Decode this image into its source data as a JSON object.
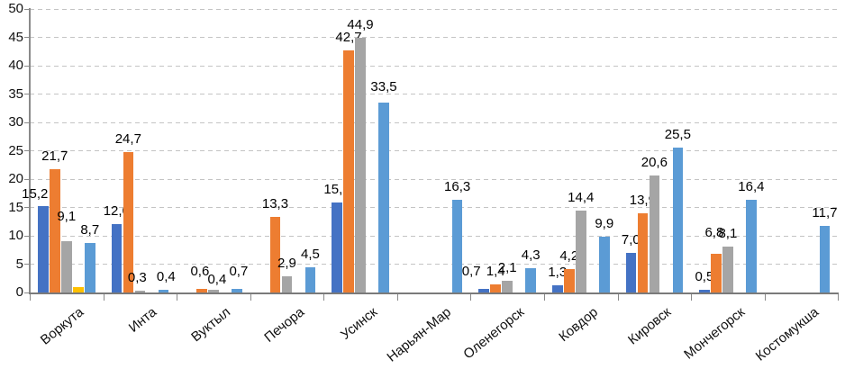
{
  "chart_data": {
    "type": "bar",
    "title": "",
    "xlabel": "",
    "ylabel": "",
    "grid": "dashed-horizontal",
    "legend_position": "none",
    "background": "#ffffff",
    "text_color": "#000000",
    "axis_color": "#8a8a8a",
    "gridline_color": "#c4c4c4",
    "y_axis": {
      "min": 0,
      "max": 50,
      "step": 5,
      "tick_labels": [
        "0",
        "5",
        "10",
        "15",
        "20",
        "25",
        "30",
        "35",
        "40",
        "45",
        "50"
      ]
    },
    "categories": [
      "Воркута",
      "Инта",
      "Вуктыл",
      "Печора",
      "Усинск",
      "Нарьян-Мар",
      "Оленегорск",
      "Ковдор",
      "Кировск",
      "Мончегорск",
      "Костомукша"
    ],
    "series": [
      {
        "name": "series-dark-blue",
        "color": "#4472C4",
        "values": [
          15.2,
          12.0,
          0,
          0,
          15.9,
          0,
          0.7,
          1.3,
          7.0,
          0.5,
          0
        ],
        "labels": [
          "15,2",
          "12,0",
          null,
          null,
          "15,9",
          null,
          "0,7",
          "1,3",
          "7,0",
          "0,5",
          null
        ]
      },
      {
        "name": "series-orange",
        "color": "#ED7D31",
        "values": [
          21.7,
          24.7,
          0.6,
          13.3,
          42.7,
          0,
          1.4,
          4.2,
          13.9,
          6.8,
          0
        ],
        "labels": [
          "21,7",
          "24,7",
          "0,6",
          "13,3",
          "42,7",
          null,
          "1,4",
          "4,2",
          "13,9",
          "6,8",
          null
        ]
      },
      {
        "name": "series-gray",
        "color": "#A5A5A5",
        "values": [
          9.1,
          0.3,
          0.4,
          2.9,
          44.9,
          0,
          2.1,
          14.4,
          20.6,
          8.1,
          0
        ],
        "labels": [
          "9,1",
          "0,3",
          "0,4",
          "2,9",
          "44,9",
          null,
          "2,1",
          "14,4",
          "20,6",
          "8,1",
          null
        ]
      },
      {
        "name": "series-yellow",
        "color": "#FFC000",
        "values": [
          0.9,
          0,
          0,
          0,
          0,
          0,
          0,
          0,
          0,
          0,
          0
        ],
        "labels": [
          null,
          null,
          null,
          null,
          null,
          null,
          null,
          null,
          null,
          null,
          null
        ]
      },
      {
        "name": "series-light-blue",
        "color": "#5B9BD5",
        "values": [
          8.7,
          0.4,
          0.7,
          4.5,
          33.5,
          16.3,
          4.3,
          9.9,
          25.5,
          16.4,
          11.7
        ],
        "labels": [
          "8,7",
          "0,4",
          "0,7",
          "4,5",
          "33,5",
          "16,3",
          "4,3",
          "9,9",
          "25,5",
          "16,4",
          "11,7"
        ]
      }
    ],
    "label_offsets": {
      "0-0": [
        -9,
        1
      ],
      "2-0": [
        0,
        -13
      ],
      "2-1": [
        -3,
        0
      ],
      "4-1": [
        3,
        0
      ],
      "1-2": [
        -2,
        -5
      ],
      "2-2": [
        4,
        3
      ],
      "4-2": [
        2,
        -5
      ],
      "4-4": [
        0,
        -3
      ],
      "0-6": [
        -14,
        -5
      ],
      "1-9": [
        -2,
        -9
      ]
    }
  }
}
